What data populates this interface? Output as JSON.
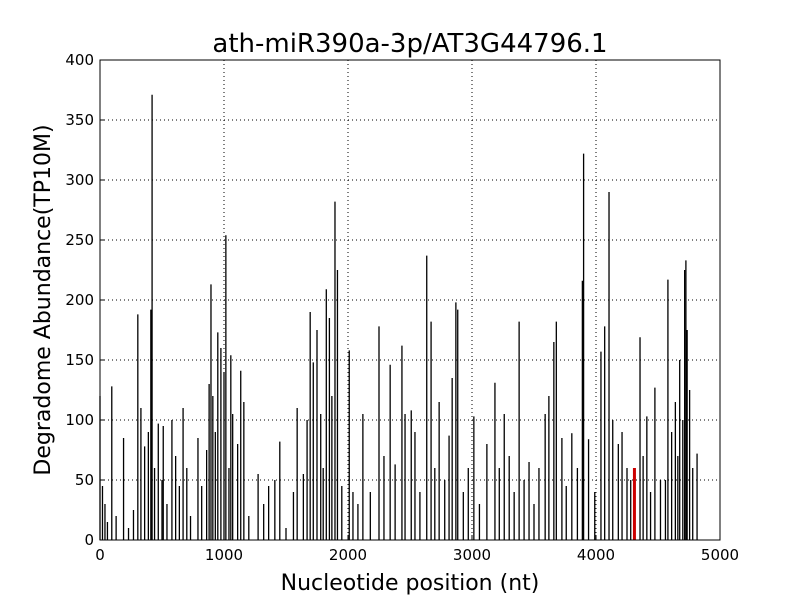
{
  "chart_data": {
    "type": "stem",
    "title": "ath-miR390a-3p/AT3G44796.1",
    "x_label": "Nucleotide position (nt)",
    "y_label": "Degradome Abundance(TP10M)",
    "xlim": [
      0,
      5000
    ],
    "xticks": [
      0,
      1000,
      2000,
      3000,
      4000,
      5000
    ],
    "ylim": [
      0,
      400
    ],
    "yticks": [
      0,
      50,
      100,
      150,
      200,
      250,
      300,
      350,
      400
    ],
    "grid": true,
    "series": [
      {
        "color": "#000000",
        "x": [
          0,
          20,
          40,
          60,
          95,
          130,
          190,
          230,
          270,
          305,
          330,
          360,
          390,
          410,
          420,
          440,
          470,
          500,
          510,
          540,
          580,
          610,
          640,
          670,
          700,
          730,
          790,
          820,
          860,
          880,
          895,
          910,
          930,
          950,
          975,
          1000,
          1015,
          1040,
          1055,
          1070,
          1110,
          1135,
          1160,
          1200,
          1275,
          1320,
          1360,
          1410,
          1450,
          1500,
          1560,
          1590,
          1640,
          1670,
          1695,
          1720,
          1750,
          1780,
          1800,
          1825,
          1850,
          1870,
          1895,
          1915,
          1950,
          2010,
          2040,
          2080,
          2120,
          2180,
          2250,
          2290,
          2340,
          2380,
          2435,
          2460,
          2510,
          2540,
          2580,
          2635,
          2670,
          2700,
          2735,
          2780,
          2815,
          2840,
          2870,
          2885,
          2930,
          2970,
          3015,
          3060,
          3120,
          3185,
          3220,
          3260,
          3300,
          3340,
          3380,
          3420,
          3460,
          3500,
          3540,
          3590,
          3620,
          3660,
          3680,
          3725,
          3760,
          3805,
          3850,
          3890,
          3900,
          3940,
          3990,
          4040,
          4070,
          4105,
          4135,
          4180,
          4210,
          4250,
          4280,
          4355,
          4380,
          4410,
          4440,
          4475,
          4520,
          4560,
          4580,
          4610,
          4640,
          4660,
          4675,
          4700,
          4715,
          4725,
          4735,
          4755,
          4780,
          4815
        ],
        "values": [
          120,
          45,
          30,
          15,
          128,
          20,
          85,
          10,
          25,
          188,
          110,
          78,
          90,
          192,
          371,
          60,
          97,
          50,
          95,
          30,
          100,
          70,
          45,
          110,
          60,
          20,
          85,
          45,
          75,
          130,
          213,
          120,
          90,
          173,
          160,
          140,
          254,
          60,
          154,
          105,
          80,
          141,
          115,
          20,
          55,
          30,
          45,
          50,
          82,
          10,
          40,
          110,
          55,
          100,
          190,
          148,
          175,
          105,
          60,
          209,
          185,
          120,
          282,
          225,
          45,
          158,
          40,
          30,
          105,
          40,
          178,
          70,
          146,
          63,
          162,
          105,
          108,
          90,
          40,
          237,
          182,
          60,
          115,
          50,
          87,
          135,
          198,
          192,
          40,
          60,
          103,
          30,
          80,
          131,
          60,
          105,
          70,
          40,
          182,
          50,
          65,
          30,
          60,
          105,
          120,
          165,
          182,
          85,
          45,
          89,
          60,
          216,
          322,
          84,
          40,
          157,
          178,
          290,
          100,
          80,
          90,
          60,
          50,
          169,
          70,
          103,
          40,
          127,
          50,
          50,
          217,
          90,
          115,
          70,
          150,
          100,
          225,
          233,
          175,
          125,
          60,
          72
        ]
      },
      {
        "color": "#cc0000",
        "x": [
          4310
        ],
        "values": [
          60
        ]
      }
    ]
  }
}
